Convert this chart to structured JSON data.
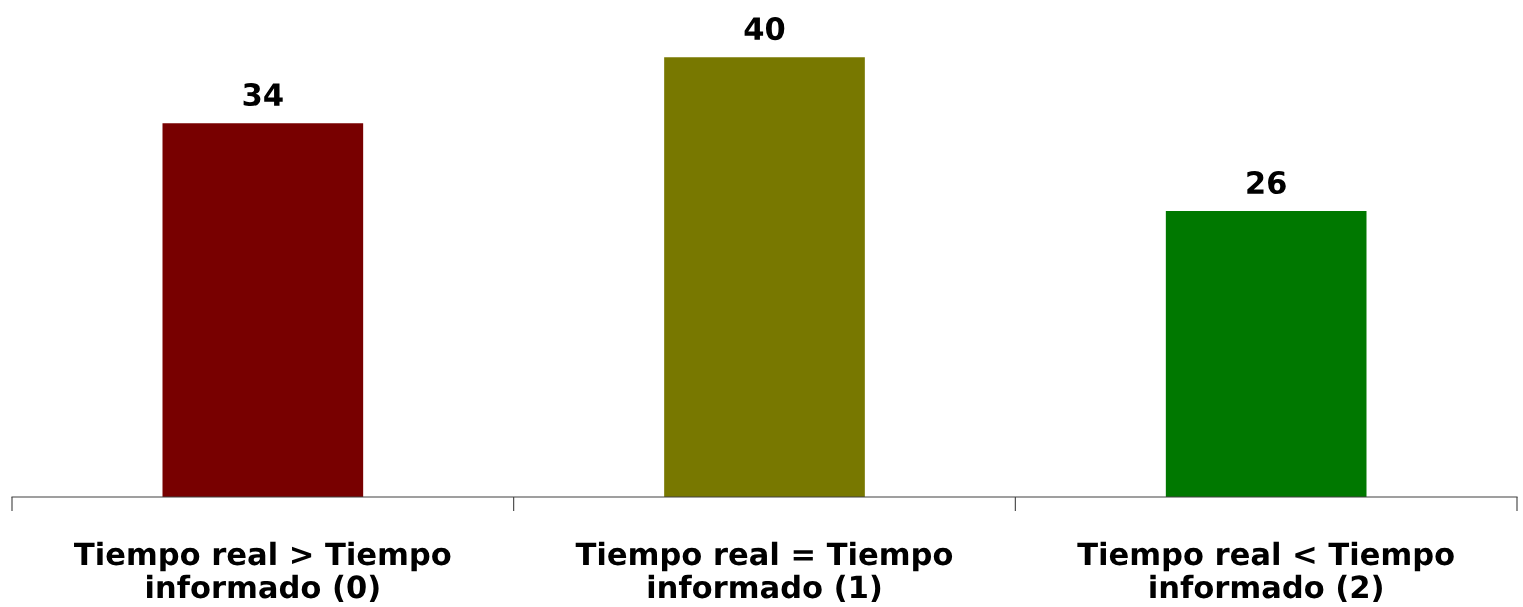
{
  "chart_data": {
    "type": "bar",
    "categories": [
      "Tiempo real > Tiempo\ninformado (0)",
      "Tiempo real = Tiempo\ninformado (1)",
      "Tiempo real < Tiempo\ninformado (2)"
    ],
    "values": [
      34,
      40,
      26
    ],
    "colors": [
      "#780000",
      "#787800",
      "#007800"
    ],
    "data_labels": true,
    "grid": false,
    "legend": false
  }
}
